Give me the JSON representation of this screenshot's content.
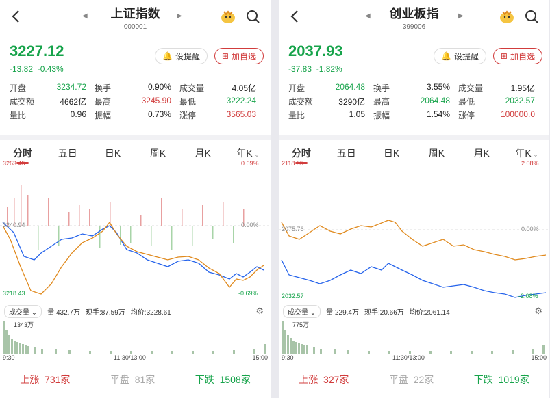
{
  "panels": [
    {
      "name": "上证指数",
      "code": "000001",
      "price": "3227.12",
      "change": "-13.82",
      "change_pct": "-0.43%",
      "remind_label": "设提醒",
      "add_label": "加自选",
      "stats": [
        [
          {
            "label": "开盘",
            "value": "3234.72",
            "color": "green"
          },
          {
            "label": "换手",
            "value": "0.90%",
            "color": ""
          },
          {
            "label": "成交量",
            "value": "4.05亿",
            "color": ""
          }
        ],
        [
          {
            "label": "成交额",
            "value": "4662亿",
            "color": ""
          },
          {
            "label": "最高",
            "value": "3245.90",
            "color": "red"
          },
          {
            "label": "最低",
            "value": "3222.24",
            "color": "green"
          }
        ],
        [
          {
            "label": "量比",
            "value": "0.96",
            "color": ""
          },
          {
            "label": "振幅",
            "value": "0.73%",
            "color": ""
          },
          {
            "label": "涨停",
            "value": "3565.03",
            "color": "red"
          }
        ]
      ],
      "tabs": [
        "分时",
        "五日",
        "日K",
        "周K",
        "月K",
        "年K"
      ],
      "chart_top_left": "3263.45",
      "chart_top_right": "0.69%",
      "chart_mid_left": "3240.94",
      "chart_mid_right": "0.00%",
      "chart_bottom_left": "3218.43",
      "chart_bottom_right": "-0.69%",
      "vol_label": "成交量",
      "vol_amount": "量:432.7万",
      "vol_now": "现手:87.59万",
      "vol_avg": "均价:3228.61",
      "vol_max": "1343万",
      "time_start": "9:30",
      "time_mid": "11:30/13:00",
      "time_end": "15:00",
      "up_label": "上涨",
      "up_count": "731家",
      "flat_label": "平盘",
      "flat_count": "81家",
      "down_label": "下跌",
      "down_count": "1508家"
    },
    {
      "name": "创业板指",
      "code": "399006",
      "price": "2037.93",
      "change": "-37.83",
      "change_pct": "-1.82%",
      "remind_label": "设提醒",
      "add_label": "加自选",
      "stats": [
        [
          {
            "label": "开盘",
            "value": "2064.48",
            "color": "green"
          },
          {
            "label": "换手",
            "value": "3.55%",
            "color": ""
          },
          {
            "label": "成交量",
            "value": "1.95亿",
            "color": ""
          }
        ],
        [
          {
            "label": "成交额",
            "value": "3290亿",
            "color": ""
          },
          {
            "label": "最高",
            "value": "2064.48",
            "color": "green"
          },
          {
            "label": "最低",
            "value": "2032.57",
            "color": "green"
          }
        ],
        [
          {
            "label": "量比",
            "value": "1.05",
            "color": ""
          },
          {
            "label": "振幅",
            "value": "1.54%",
            "color": ""
          },
          {
            "label": "涨停",
            "value": "100000.0",
            "color": "red"
          }
        ]
      ],
      "tabs": [
        "分时",
        "五日",
        "日K",
        "周K",
        "月K",
        "年K"
      ],
      "chart_top_left": "2118.95",
      "chart_top_right": "2.08%",
      "chart_mid_left": "2075.76",
      "chart_mid_right": "0.00%",
      "chart_bottom_left": "2032.57",
      "chart_bottom_right": "-2.08%",
      "vol_label": "成交量",
      "vol_amount": "量:229.4万",
      "vol_now": "现手:20.66万",
      "vol_avg": "均价:2061.14",
      "vol_max": "775万",
      "time_start": "9:30",
      "time_mid": "11:30/13:00",
      "time_end": "15:00",
      "up_label": "上涨",
      "up_count": "327家",
      "flat_label": "平盘",
      "flat_count": "22家",
      "down_label": "下跌",
      "down_count": "1019家"
    }
  ],
  "colors": {
    "up": "#d13c3c",
    "down": "#16a34a",
    "line_price": "#2563eb",
    "line_avg": "#e08a1e"
  }
}
